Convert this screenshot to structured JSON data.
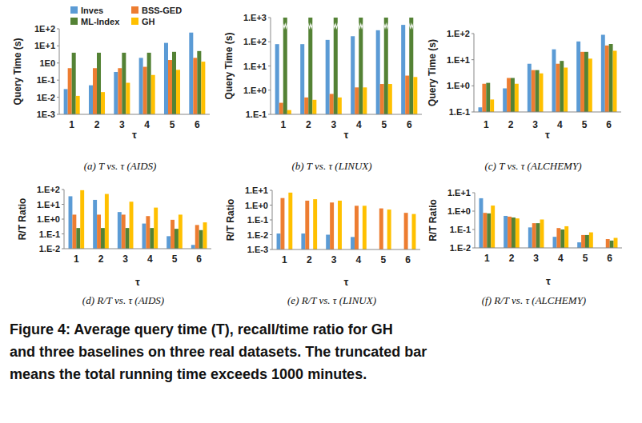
{
  "chart_data": [
    {
      "type": "bar",
      "title": "(a) T vs. τ (AIDS)",
      "x_label": "τ",
      "y_label": "Query Time (s)",
      "categories": [
        "1",
        "2",
        "3",
        "4",
        "5",
        "6"
      ],
      "log": "y",
      "legend": "top",
      "ylim": [
        0.001,
        100
      ],
      "yticks": [
        {
          "value": 0.001,
          "label": "1E-3"
        },
        {
          "value": 0.01,
          "label": "1E-2"
        },
        {
          "value": 0.1,
          "label": "1E-1"
        },
        {
          "value": 1,
          "label": "1E0"
        },
        {
          "value": 10,
          "label": "1E+1"
        },
        {
          "value": 100,
          "label": "1E+2"
        }
      ],
      "series": [
        {
          "name": "Inves",
          "color": "#5b9bd5",
          "values": [
            0.03,
            0.05,
            0.3,
            2,
            15,
            60
          ]
        },
        {
          "name": "BSS-GED",
          "color": "#ed7d31",
          "values": [
            0.5,
            0.5,
            0.5,
            0.6,
            1.5,
            2
          ]
        },
        {
          "name": "ML-Index",
          "color": "#548235",
          "values": [
            4,
            4,
            4,
            4,
            4.5,
            5
          ]
        },
        {
          "name": "GH",
          "color": "#ffc000",
          "values": [
            0.012,
            0.02,
            0.07,
            0.2,
            0.4,
            1.2
          ]
        }
      ]
    },
    {
      "type": "bar",
      "title": "(b) T vs. τ (LINUX)",
      "x_label": "τ",
      "y_label": "Query Time (s)",
      "categories": [
        "1",
        "2",
        "3",
        "4",
        "5",
        "6"
      ],
      "log": "y",
      "ylim": [
        0.1,
        1000
      ],
      "yticks": [
        {
          "value": 0.1,
          "label": "1.E-1"
        },
        {
          "value": 1,
          "label": "1.E+0"
        },
        {
          "value": 10,
          "label": "1.E+1"
        },
        {
          "value": 100,
          "label": "1.E+2"
        },
        {
          "value": 1000,
          "label": "1.E+3"
        }
      ],
      "series": [
        {
          "color": "#5b9bd5",
          "values": [
            80,
            80,
            120,
            170,
            300,
            500
          ]
        },
        {
          "color": "#ed7d31",
          "values": [
            0.3,
            0.5,
            0.7,
            1.3,
            1.8,
            4
          ]
        },
        {
          "color": "#548235",
          "values": [
            1000,
            1000,
            1000,
            1000,
            1000,
            1000
          ]
        },
        {
          "color": "#ffc000",
          "values": [
            0.15,
            0.4,
            0.5,
            1.3,
            1.8,
            3.5
          ]
        }
      ]
    },
    {
      "type": "bar",
      "title": "(c) T vs. τ (ALCHEMY)",
      "x_label": "τ",
      "y_label": "Query Time (s)",
      "categories": [
        "1",
        "2",
        "3",
        "4",
        "5",
        "6"
      ],
      "log": "y",
      "ylim": [
        0.1,
        100
      ],
      "yticks": [
        {
          "value": 0.1,
          "label": "1.E-1"
        },
        {
          "value": 1,
          "label": "1.E+0"
        },
        {
          "value": 10,
          "label": "1.E+1"
        },
        {
          "value": 100,
          "label": "1.E+2"
        }
      ],
      "series": [
        {
          "color": "#5b9bd5",
          "values": [
            0.15,
            0.8,
            7,
            25,
            50,
            90
          ]
        },
        {
          "color": "#ed7d31",
          "values": [
            1.2,
            2,
            4,
            7,
            20,
            35
          ]
        },
        {
          "color": "#548235",
          "values": [
            1.3,
            2,
            4,
            9,
            20,
            40
          ]
        },
        {
          "color": "#ffc000",
          "values": [
            0.3,
            1.2,
            3,
            5,
            11,
            22
          ]
        }
      ]
    },
    {
      "type": "bar",
      "title": "(d) R/T vs. τ (AIDS)",
      "x_label": "τ",
      "y_label": "R/T Ratio",
      "categories": [
        "1",
        "2",
        "3",
        "4",
        "5",
        "6"
      ],
      "log": "y",
      "ylim": [
        0.01,
        100
      ],
      "yticks": [
        {
          "value": 0.01,
          "label": "1.E-2"
        },
        {
          "value": 0.1,
          "label": "1.E-1"
        },
        {
          "value": 1,
          "label": "1.E+0"
        },
        {
          "value": 10,
          "label": "1.E+1"
        },
        {
          "value": 100,
          "label": "1.E+2"
        }
      ],
      "series": [
        {
          "color": "#5b9bd5",
          "values": [
            35,
            20,
            3,
            0.5,
            0.07,
            0.018
          ]
        },
        {
          "color": "#ed7d31",
          "values": [
            2,
            2,
            2,
            1.6,
            0.9,
            0.4
          ]
        },
        {
          "color": "#548235",
          "values": [
            0.25,
            0.25,
            0.25,
            0.25,
            0.22,
            0.18
          ]
        },
        {
          "color": "#ffc000",
          "values": [
            90,
            50,
            15,
            6,
            2,
            0.6
          ]
        }
      ]
    },
    {
      "type": "bar",
      "title": "(e) R/T vs. τ (LINUX)",
      "x_label": "τ",
      "y_label": "R/T Ratio",
      "categories": [
        "1",
        "2",
        "3",
        "4",
        "5",
        "6"
      ],
      "log": "y",
      "ylim": [
        0.001,
        10
      ],
      "yticks": [
        {
          "value": 0.001,
          "label": "1.E-3"
        },
        {
          "value": 0.01,
          "label": "1.E-2"
        },
        {
          "value": 0.1,
          "label": "1.E-1"
        },
        {
          "value": 1,
          "label": "1.E+0"
        },
        {
          "value": 10,
          "label": "1.E+1"
        }
      ],
      "series": [
        {
          "color": "#5b9bd5",
          "values": [
            0.012,
            0.012,
            0.01,
            0.007,
            null,
            null
          ]
        },
        {
          "color": "#ed7d31",
          "values": [
            3,
            2,
            1.5,
            0.9,
            0.6,
            0.3
          ]
        },
        {
          "color": "#548235",
          "values": [
            null,
            null,
            null,
            null,
            null,
            null
          ]
        },
        {
          "color": "#ffc000",
          "values": [
            7,
            2.5,
            2,
            0.9,
            0.5,
            0.25
          ]
        }
      ]
    },
    {
      "type": "bar",
      "title": "(f) R/T vs. τ (ALCHEMY)",
      "x_label": "τ",
      "y_label": "R/T Ratio",
      "categories": [
        "1",
        "2",
        "3",
        "4",
        "5",
        "6"
      ],
      "log": "y",
      "ylim": [
        0.01,
        10
      ],
      "yticks": [
        {
          "value": 0.01,
          "label": "1.E-2"
        },
        {
          "value": 0.1,
          "label": "1.E-1"
        },
        {
          "value": 1,
          "label": "1.E+0"
        },
        {
          "value": 10,
          "label": "1.E+1"
        }
      ],
      "series": [
        {
          "color": "#5b9bd5",
          "values": [
            5,
            0.55,
            0.13,
            0.04,
            0.02,
            0.01
          ]
        },
        {
          "color": "#ed7d31",
          "values": [
            0.8,
            0.5,
            0.22,
            0.12,
            0.05,
            0.03
          ]
        },
        {
          "color": "#548235",
          "values": [
            0.75,
            0.45,
            0.22,
            0.1,
            0.05,
            0.025
          ]
        },
        {
          "color": "#ffc000",
          "values": [
            2,
            0.4,
            0.35,
            0.15,
            0.07,
            0.035
          ]
        }
      ]
    }
  ],
  "caption": [
    "Figure 4: Average query time (T), recall/time ratio for GH",
    "and three baselines on three real datasets. The truncated bar",
    "means the total running time exceeds 1000 minutes."
  ]
}
